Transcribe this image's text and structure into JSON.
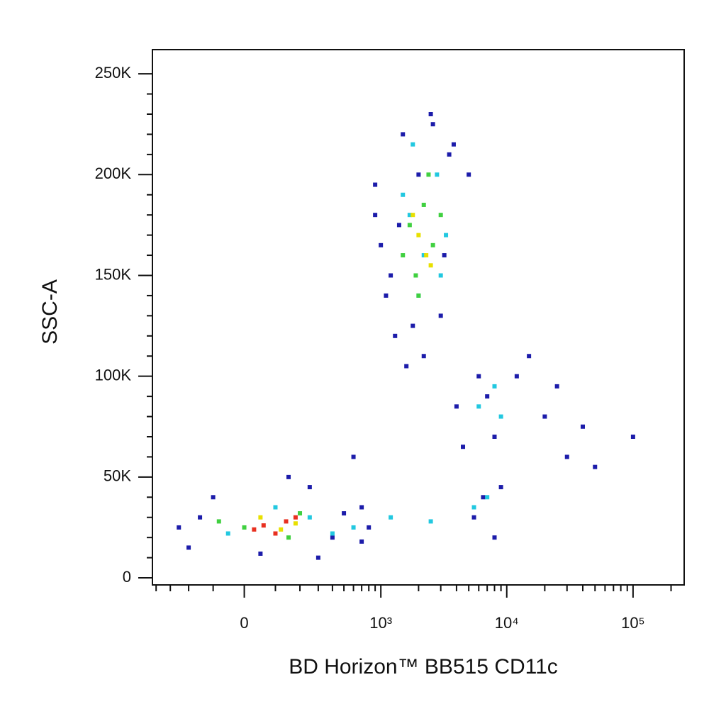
{
  "chart_data": {
    "type": "scatter",
    "x_label": "BD Horizon™ BB515  CD11c",
    "y_label": "SSC-A",
    "xscale": "biexponential",
    "xlim": [
      -430,
      254000
    ],
    "ylim": [
      -3500,
      262000
    ],
    "xticks": [
      0,
      {
        "value": 1000,
        "label": "10³"
      },
      {
        "value": 10000,
        "label": "10⁴"
      },
      {
        "value": 100000,
        "label": "10⁵"
      }
    ],
    "xminor_ticks": [
      -400,
      -300,
      -200,
      -100,
      100,
      200,
      300,
      400,
      500,
      600,
      700,
      800,
      900,
      2000,
      3000,
      4000,
      5000,
      6000,
      7000,
      8000,
      9000,
      20000,
      30000,
      40000,
      50000,
      60000,
      70000,
      80000,
      90000,
      200000
    ],
    "yticks": [
      0,
      {
        "value": 50000,
        "label": "50K"
      },
      {
        "value": 100000,
        "label": "100K"
      },
      {
        "value": 150000,
        "label": "150K"
      },
      {
        "value": 200000,
        "label": "200K"
      },
      {
        "value": 250000,
        "label": "250K"
      }
    ],
    "yminor_ticks": [
      10000,
      20000,
      30000,
      40000,
      60000,
      70000,
      80000,
      90000,
      110000,
      120000,
      130000,
      140000,
      160000,
      170000,
      180000,
      190000,
      210000,
      220000,
      230000,
      240000
    ],
    "series": [
      {
        "color": "#1c1caa",
        "x": [
          -200,
          -100,
          50,
          250,
          400,
          600,
          -150,
          300,
          800,
          1200,
          1500,
          900,
          2500,
          3500,
          5000,
          7000,
          8000,
          6000,
          4000,
          1100,
          1300,
          1800,
          2200,
          3000,
          900,
          1000,
          3800,
          2600,
          1600,
          700,
          5500,
          9000,
          12000,
          20000,
          30000,
          40000,
          15000,
          25000,
          6500,
          8000,
          50000,
          100000,
          -250,
          150,
          500,
          700,
          4500,
          3200,
          2000,
          1400
        ],
        "values": [
          15000,
          40000,
          12000,
          45000,
          20000,
          60000,
          30000,
          10000,
          25000,
          150000,
          220000,
          180000,
          230000,
          210000,
          200000,
          90000,
          70000,
          100000,
          85000,
          140000,
          120000,
          125000,
          110000,
          130000,
          195000,
          165000,
          215000,
          225000,
          105000,
          35000,
          30000,
          45000,
          100000,
          80000,
          60000,
          75000,
          110000,
          95000,
          40000,
          20000,
          55000,
          70000,
          25000,
          50000,
          32000,
          18000,
          65000,
          160000,
          200000,
          175000
        ]
      },
      {
        "color": "#22c8e0",
        "x": [
          100,
          -50,
          250,
          1500,
          2000,
          2800,
          3300,
          1800,
          6000,
          8000,
          5500,
          2500,
          3000,
          7000,
          1200,
          1700,
          600,
          400,
          2200,
          9000
        ],
        "values": [
          35000,
          22000,
          30000,
          190000,
          140000,
          200000,
          170000,
          215000,
          85000,
          95000,
          35000,
          28000,
          150000,
          40000,
          30000,
          180000,
          25000,
          22000,
          160000,
          80000
        ]
      },
      {
        "color": "#40d040",
        "x": [
          0,
          150,
          -80,
          200,
          1700,
          2200,
          2600,
          1900,
          2400,
          1500,
          3000,
          2000
        ],
        "values": [
          25000,
          20000,
          28000,
          32000,
          175000,
          185000,
          165000,
          150000,
          200000,
          160000,
          180000,
          140000
        ]
      },
      {
        "color": "#e8e000",
        "x": [
          50,
          120,
          180,
          2000,
          2300,
          1800,
          2500
        ],
        "values": [
          30000,
          24000,
          27000,
          170000,
          160000,
          180000,
          155000
        ]
      },
      {
        "color": "#e83020",
        "x": [
          60,
          100,
          140,
          30,
          180
        ],
        "values": [
          26000,
          22000,
          28000,
          24000,
          30000
        ]
      }
    ]
  }
}
